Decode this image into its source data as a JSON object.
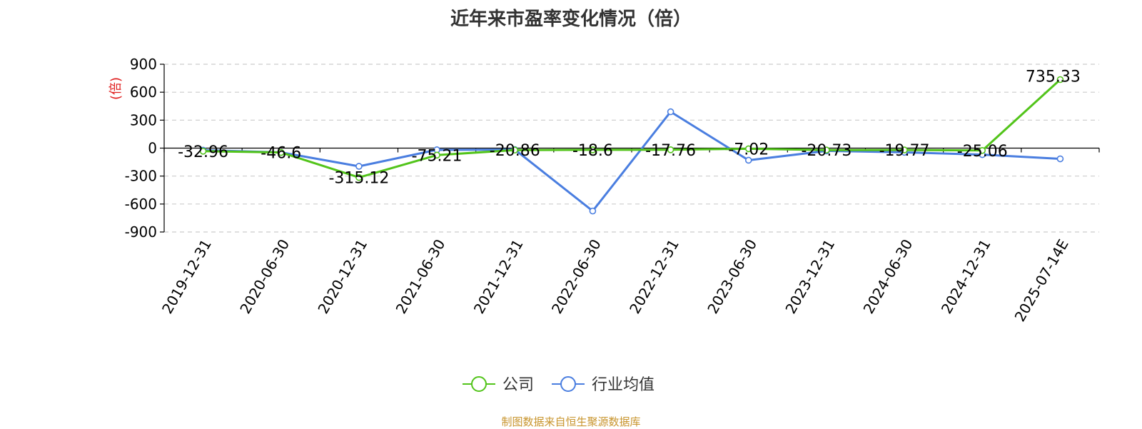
{
  "title": "近年来市盈率变化情况（倍）",
  "source": "制图数据来自恒生聚源数据库",
  "colors": {
    "company": "#52c41a",
    "industry": "#4a7ee0",
    "unit": "#e02020",
    "source": "#c8952e"
  },
  "chart_data": {
    "type": "line",
    "title": "近年来市盈率变化情况（倍）",
    "ylabel": "(倍)",
    "ylim": [
      -900,
      900
    ],
    "yticks": [
      900,
      600,
      300,
      0,
      -300,
      -600,
      -900
    ],
    "grid": true,
    "legend_position": "bottom-center",
    "categories": [
      "2019-12-31",
      "2020-06-30",
      "2020-12-31",
      "2021-06-30",
      "2021-12-31",
      "2022-06-30",
      "2022-12-31",
      "2023-06-30",
      "2023-12-31",
      "2024-06-30",
      "2024-12-31",
      "2025-07-14E"
    ],
    "series": [
      {
        "name": "公司",
        "values": [
          -32.96,
          -46.6,
          -315.12,
          -75.21,
          -20.86,
          -18.6,
          -17.76,
          -7.02,
          -20.73,
          -19.77,
          -25.06,
          735.33
        ],
        "labels": [
          "-32.96",
          "-46.6",
          "-315.12",
          "-75.21",
          "-20.86",
          "-18.6",
          "-17.76",
          "-7.02",
          "-20.73",
          "-19.77",
          "-25.06",
          "735.33"
        ]
      },
      {
        "name": "行业均值",
        "values": [
          -22,
          -46,
          -195,
          -18,
          -16,
          -675,
          390,
          -130,
          -30,
          -45,
          -70,
          -115
        ]
      }
    ]
  }
}
